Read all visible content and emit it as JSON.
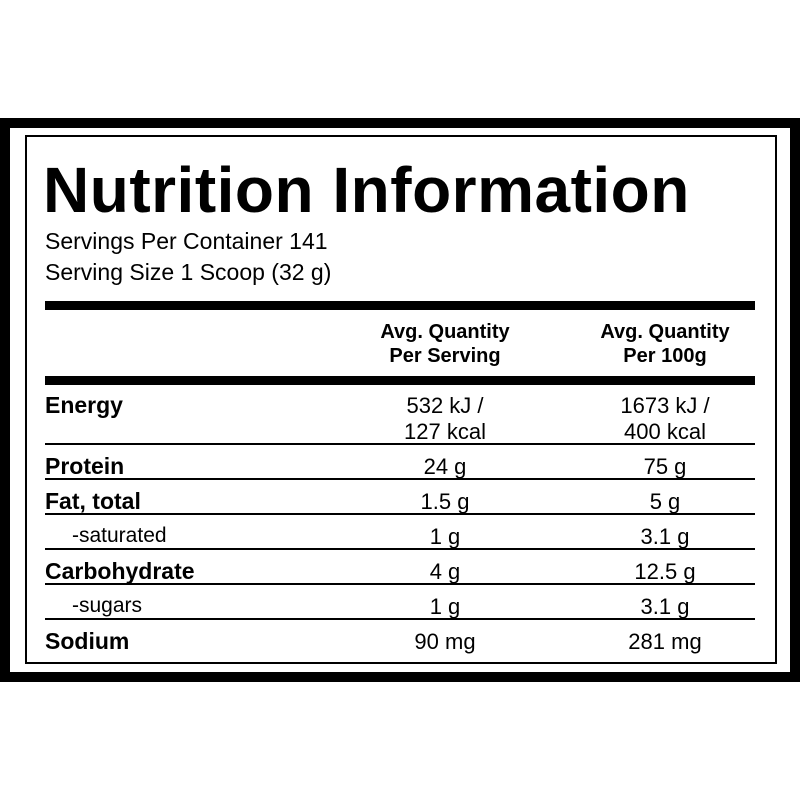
{
  "header": {
    "title": "Nutrition Information",
    "lines": [
      "Servings Per Container 141",
      "Serving Size 1 Scoop (32 g)"
    ]
  },
  "table": {
    "columns": [
      [
        "Avg. Quantity",
        "Per Serving"
      ],
      [
        "Avg. Quantity",
        "Per 100g"
      ]
    ],
    "rows": [
      {
        "label": "Energy",
        "cells": [
          [
            "532 kJ /",
            "127 kcal"
          ],
          [
            "1673 kJ /",
            "400 kcal"
          ]
        ]
      },
      {
        "label": "Protein",
        "cells": [
          [
            "24 g"
          ],
          [
            "75 g"
          ]
        ]
      },
      {
        "label": "Fat, total",
        "cells": [
          [
            "1.5 g"
          ],
          [
            "5 g"
          ]
        ]
      },
      {
        "label": "-saturated",
        "cells": [
          [
            "1 g"
          ],
          [
            "3.1 g"
          ]
        ]
      },
      {
        "label": "Carbohydrate",
        "cells": [
          [
            "4 g"
          ],
          [
            "12.5 g"
          ]
        ]
      },
      {
        "label": "-sugars",
        "cells": [
          [
            "1 g"
          ],
          [
            "3.1 g"
          ]
        ]
      },
      {
        "label": "Sodium",
        "cells": [
          [
            "90 mg"
          ],
          [
            "281 mg"
          ]
        ]
      }
    ]
  }
}
